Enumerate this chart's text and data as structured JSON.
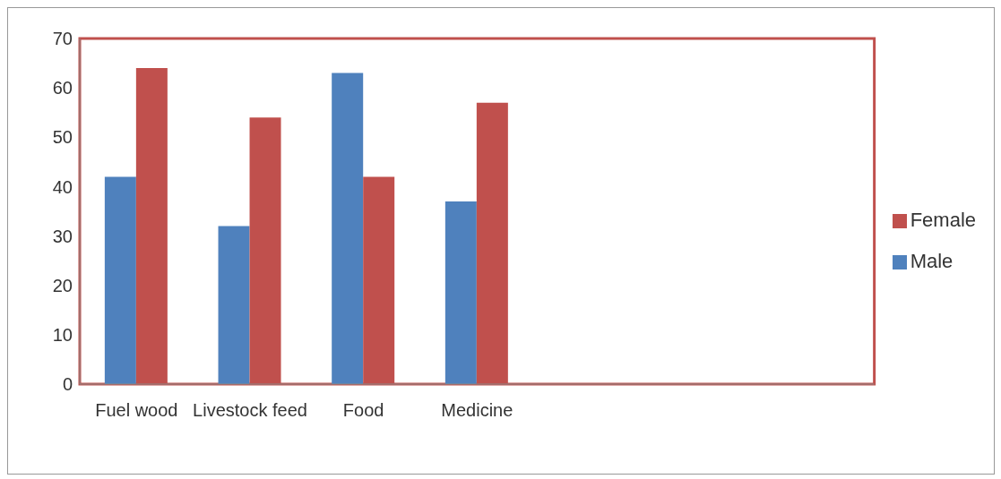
{
  "chart_data": {
    "type": "bar",
    "categories": [
      "Fuel wood",
      "Livestock feed",
      "Food",
      "Medicine",
      null,
      null,
      null
    ],
    "series": [
      {
        "name": "Male",
        "color": "#4f81bd",
        "values": [
          42,
          32,
          63,
          37,
          null,
          null,
          null
        ]
      },
      {
        "name": "Female",
        "color": "#c0504d",
        "values": [
          64,
          54,
          42,
          57,
          null,
          null,
          null
        ]
      }
    ],
    "ylim": [
      0,
      70
    ],
    "yticks": [
      0,
      10,
      20,
      30,
      40,
      50,
      60,
      70
    ],
    "grid": false,
    "legend": "right"
  }
}
